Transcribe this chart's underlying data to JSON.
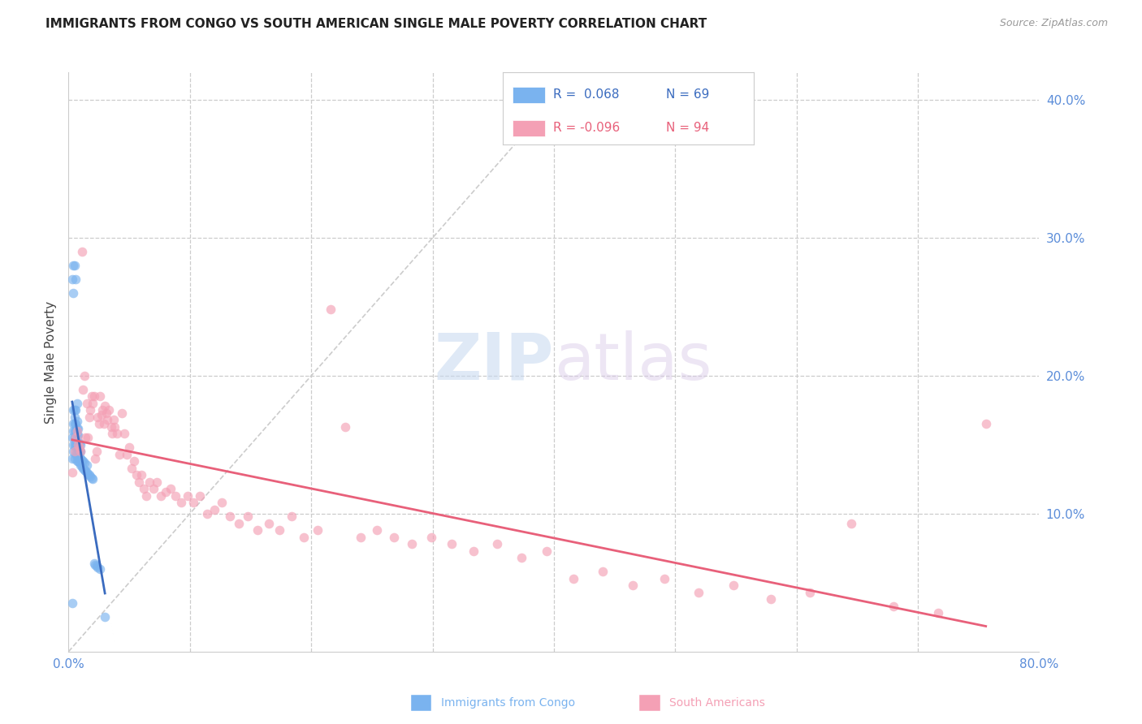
{
  "title": "IMMIGRANTS FROM CONGO VS SOUTH AMERICAN SINGLE MALE POVERTY CORRELATION CHART",
  "source": "Source: ZipAtlas.com",
  "ylabel": "Single Male Poverty",
  "xlim": [
    0.0,
    0.8
  ],
  "ylim": [
    0.0,
    0.42
  ],
  "blue_color": "#7ab3ef",
  "pink_color": "#f4a0b5",
  "blue_line_color": "#3a6bbf",
  "pink_line_color": "#e8607a",
  "axis_color": "#5b8dd9",
  "background_color": "#ffffff",
  "congo_x": [
    0.003,
    0.003,
    0.003,
    0.003,
    0.004,
    0.004,
    0.004,
    0.004,
    0.004,
    0.004,
    0.004,
    0.005,
    0.005,
    0.005,
    0.005,
    0.005,
    0.005,
    0.005,
    0.005,
    0.006,
    0.006,
    0.006,
    0.006,
    0.006,
    0.006,
    0.006,
    0.006,
    0.007,
    0.007,
    0.007,
    0.007,
    0.007,
    0.007,
    0.007,
    0.007,
    0.008,
    0.008,
    0.008,
    0.008,
    0.008,
    0.008,
    0.009,
    0.009,
    0.009,
    0.009,
    0.01,
    0.01,
    0.01,
    0.01,
    0.011,
    0.011,
    0.012,
    0.012,
    0.013,
    0.013,
    0.014,
    0.015,
    0.015,
    0.016,
    0.017,
    0.018,
    0.019,
    0.02,
    0.021,
    0.022,
    0.023,
    0.024,
    0.026,
    0.03
  ],
  "congo_y": [
    0.035,
    0.14,
    0.155,
    0.27,
    0.145,
    0.15,
    0.16,
    0.165,
    0.175,
    0.26,
    0.28,
    0.14,
    0.15,
    0.155,
    0.16,
    0.165,
    0.17,
    0.175,
    0.28,
    0.143,
    0.148,
    0.152,
    0.156,
    0.16,
    0.165,
    0.175,
    0.27,
    0.138,
    0.143,
    0.148,
    0.152,
    0.157,
    0.162,
    0.167,
    0.18,
    0.138,
    0.142,
    0.147,
    0.152,
    0.157,
    0.162,
    0.137,
    0.141,
    0.146,
    0.151,
    0.135,
    0.14,
    0.145,
    0.15,
    0.134,
    0.139,
    0.133,
    0.138,
    0.132,
    0.137,
    0.131,
    0.13,
    0.135,
    0.129,
    0.128,
    0.127,
    0.126,
    0.125,
    0.064,
    0.063,
    0.062,
    0.061,
    0.06,
    0.025
  ],
  "sa_x": [
    0.003,
    0.005,
    0.006,
    0.007,
    0.008,
    0.009,
    0.01,
    0.011,
    0.012,
    0.013,
    0.014,
    0.015,
    0.016,
    0.017,
    0.018,
    0.019,
    0.02,
    0.021,
    0.022,
    0.023,
    0.024,
    0.025,
    0.026,
    0.027,
    0.028,
    0.029,
    0.03,
    0.031,
    0.032,
    0.033,
    0.035,
    0.036,
    0.037,
    0.038,
    0.04,
    0.042,
    0.044,
    0.046,
    0.048,
    0.05,
    0.052,
    0.054,
    0.056,
    0.058,
    0.06,
    0.062,
    0.064,
    0.067,
    0.07,
    0.073,
    0.076,
    0.08,
    0.084,
    0.088,
    0.093,
    0.098,
    0.103,
    0.108,
    0.114,
    0.12,
    0.126,
    0.133,
    0.14,
    0.148,
    0.156,
    0.165,
    0.174,
    0.184,
    0.194,
    0.205,
    0.216,
    0.228,
    0.241,
    0.254,
    0.268,
    0.283,
    0.299,
    0.316,
    0.334,
    0.353,
    0.373,
    0.394,
    0.416,
    0.44,
    0.465,
    0.491,
    0.519,
    0.548,
    0.579,
    0.611,
    0.645,
    0.68,
    0.717,
    0.756
  ],
  "sa_y": [
    0.13,
    0.145,
    0.155,
    0.16,
    0.15,
    0.148,
    0.145,
    0.29,
    0.19,
    0.2,
    0.155,
    0.18,
    0.155,
    0.17,
    0.175,
    0.185,
    0.18,
    0.185,
    0.14,
    0.145,
    0.17,
    0.165,
    0.185,
    0.172,
    0.175,
    0.165,
    0.178,
    0.173,
    0.168,
    0.175,
    0.163,
    0.158,
    0.168,
    0.163,
    0.158,
    0.143,
    0.173,
    0.158,
    0.143,
    0.148,
    0.133,
    0.138,
    0.128,
    0.123,
    0.128,
    0.118,
    0.113,
    0.123,
    0.118,
    0.123,
    0.113,
    0.116,
    0.118,
    0.113,
    0.108,
    0.113,
    0.108,
    0.113,
    0.1,
    0.103,
    0.108,
    0.098,
    0.093,
    0.098,
    0.088,
    0.093,
    0.088,
    0.098,
    0.083,
    0.088,
    0.248,
    0.163,
    0.083,
    0.088,
    0.083,
    0.078,
    0.083,
    0.078,
    0.073,
    0.078,
    0.068,
    0.073,
    0.053,
    0.058,
    0.048,
    0.053,
    0.043,
    0.048,
    0.038,
    0.043,
    0.093,
    0.033,
    0.028,
    0.165
  ]
}
